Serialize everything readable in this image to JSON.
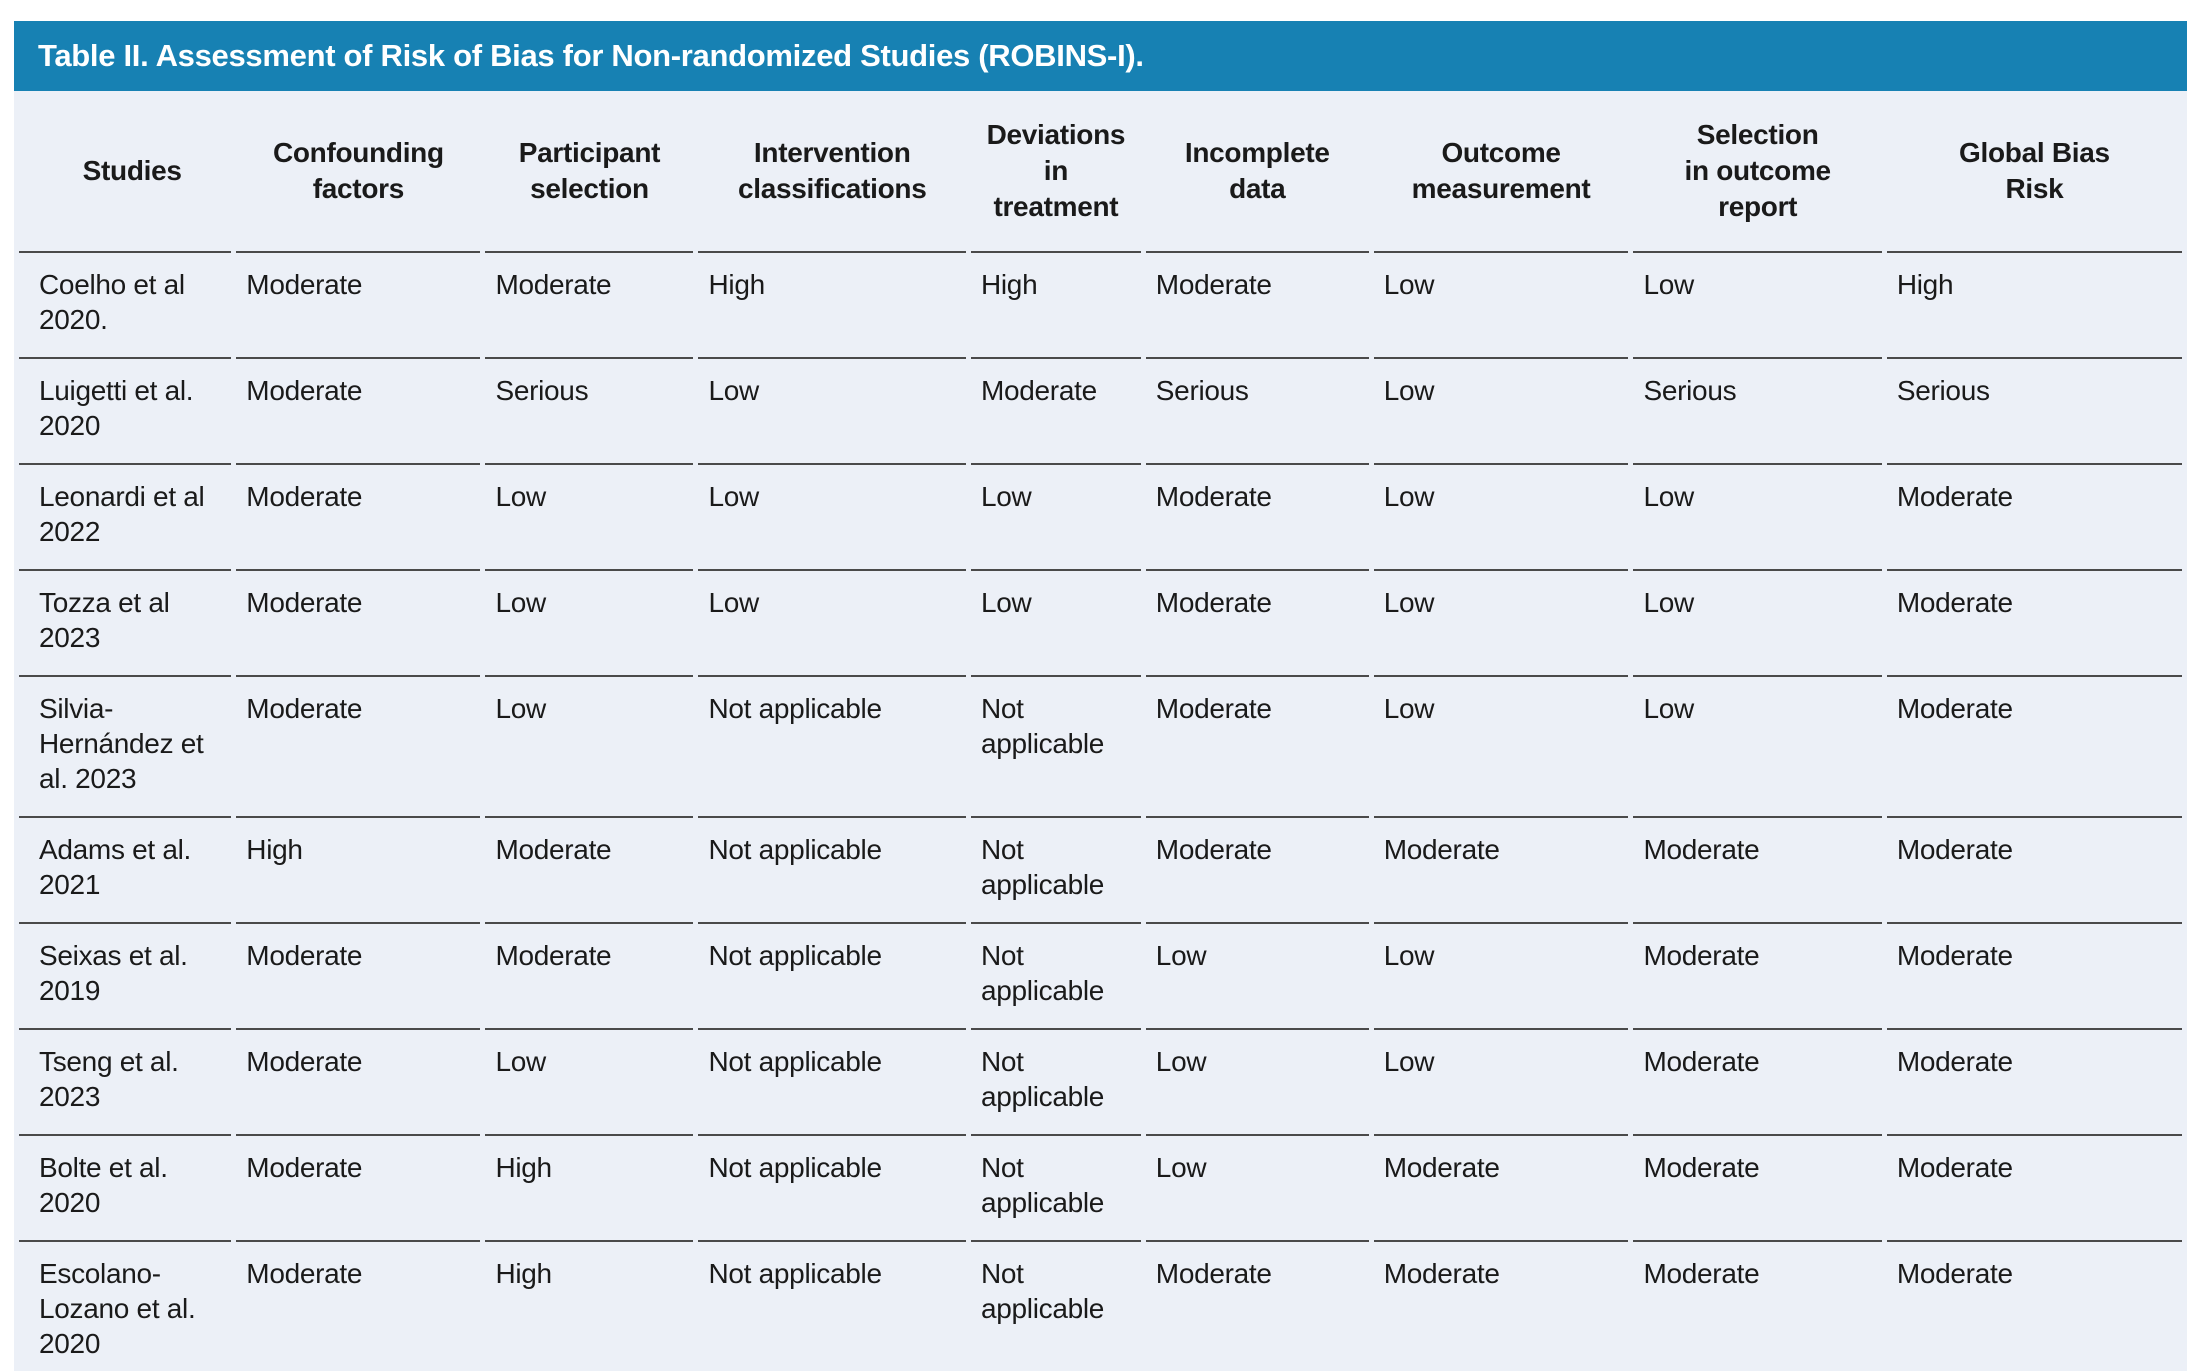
{
  "colors": {
    "title_bar": "#1781b3",
    "title_text": "#ffffff",
    "table_bg": "#ecf0f7",
    "border": "#4a4a4a",
    "text": "#1a1a1a"
  },
  "table": {
    "title": "Table II. Assessment of Risk of Bias for Non-randomized Studies (ROBINS-I).",
    "columns": [
      {
        "id": "studies",
        "label": "Studies"
      },
      {
        "id": "confounding",
        "label": "Confounding\nfactors"
      },
      {
        "id": "participant",
        "label": "Participant\nselection"
      },
      {
        "id": "intervention",
        "label": "Intervention\nclassifications"
      },
      {
        "id": "deviations",
        "label": "Deviations\nin\ntreatment"
      },
      {
        "id": "incomplete",
        "label": "Incomplete\ndata"
      },
      {
        "id": "outcome",
        "label": "Outcome\nmeasurement"
      },
      {
        "id": "selection",
        "label": "Selection\nin outcome\nreport"
      },
      {
        "id": "global",
        "label": "Global Bias\nRisk"
      }
    ],
    "rows": [
      {
        "cells": [
          "Coelho et al 2020.",
          "Moderate",
          "Moderate",
          "High",
          "High",
          "Moderate",
          "Low",
          "Low",
          "High"
        ]
      },
      {
        "cells": [
          "Luigetti et al. 2020",
          "Moderate",
          "Serious",
          "Low",
          "Moderate",
          "Serious",
          "Low",
          "Serious",
          "Serious"
        ]
      },
      {
        "cells": [
          "Leonardi et al 2022",
          "Moderate",
          "Low",
          "Low",
          "Low",
          "Moderate",
          "Low",
          "Low",
          "Moderate"
        ]
      },
      {
        "cells": [
          "Tozza et al 2023",
          "Moderate",
          "Low",
          "Low",
          "Low",
          "Moderate",
          "Low",
          "Low",
          "Moderate"
        ]
      },
      {
        "cells": [
          "Silvia-Hernández et al. 2023",
          "Moderate",
          "Low",
          "Not applicable",
          "Not applicable",
          "Moderate",
          "Low",
          "Low",
          "Moderate"
        ]
      },
      {
        "cells": [
          "Adams et al. 2021",
          "High",
          "Moderate",
          "Not applicable",
          "Not applicable",
          "Moderate",
          "Moderate",
          "Moderate",
          "Moderate"
        ]
      },
      {
        "cells": [
          "Seixas et al. 2019",
          "Moderate",
          "Moderate",
          "Not applicable",
          "Not applicable",
          "Low",
          "Low",
          "Moderate",
          "Moderate"
        ]
      },
      {
        "cells": [
          "Tseng et al. 2023",
          "Moderate",
          "Low",
          "Not applicable",
          "Not applicable",
          "Low",
          "Low",
          "Moderate",
          "Moderate"
        ]
      },
      {
        "cells": [
          "Bolte et al. 2020",
          "Moderate",
          "High",
          "Not applicable",
          "Not applicable",
          "Low",
          "Moderate",
          "Moderate",
          "Moderate"
        ]
      },
      {
        "cells": [
          "Escolano-Lozano et al. 2020",
          "Moderate",
          "High",
          "Not applicable",
          "Not applicable",
          "Moderate",
          "Moderate",
          "Moderate",
          "Moderate"
        ]
      }
    ]
  }
}
